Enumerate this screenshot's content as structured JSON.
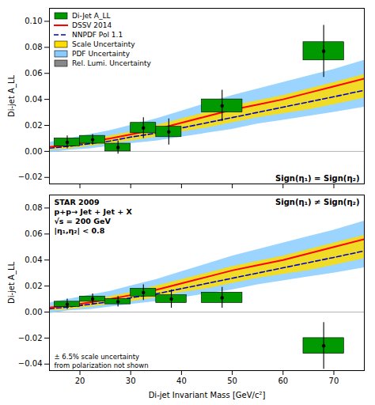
{
  "chart_data": [
    {
      "type": "errorbar",
      "ylabel": "Di-jet A_LL",
      "annotations": [
        "Sign(η₁) = Sign(η₂)"
      ],
      "xlim": [
        14,
        76
      ],
      "xticks": [
        20,
        30,
        40,
        50,
        60,
        70
      ],
      "ylim": [
        -0.025,
        0.11
      ],
      "yticks": [
        {
          "value": -0.02,
          "label": "−0.02"
        },
        {
          "value": 0,
          "label": "0.00"
        },
        0.02,
        0.04,
        0.06,
        0.08,
        {
          "value": 0.1,
          "label": "0.10"
        }
      ],
      "tick_labels": "y",
      "legend": "upper left",
      "series": [
        {
          "name": "Di-Jet A_LL",
          "type": "errorbar",
          "color": "#009900",
          "marker": "circle",
          "x": [
            17.5,
            22.5,
            27.5,
            32.5,
            37.5,
            48.0,
            68.0
          ],
          "values": [
            0.007,
            0.009,
            0.003,
            0.018,
            0.015,
            0.035,
            0.077
          ],
          "stat_err": [
            0.005,
            0.004,
            0.005,
            0.008,
            0.01,
            0.012,
            0.02
          ],
          "syst_err": [
            0.003,
            0.003,
            0.003,
            0.004,
            0.004,
            0.005,
            0.007
          ],
          "x_err": [
            2.5,
            2.5,
            2.5,
            2.5,
            2.5,
            4.0,
            4.0
          ]
        },
        {
          "name": "DSSV 2014",
          "type": "line",
          "color": "#ff0000",
          "line_style": "solid",
          "x": [
            14,
            18,
            22,
            26,
            30,
            35,
            40,
            45,
            50,
            55,
            60,
            65,
            70,
            76
          ],
          "values": [
            0.0035,
            0.005,
            0.0075,
            0.01,
            0.013,
            0.017,
            0.022,
            0.027,
            0.032,
            0.036,
            0.04,
            0.045,
            0.05,
            0.056
          ]
        },
        {
          "name": "NNPDF Pol 1.1",
          "type": "line",
          "color": "#0000cc",
          "line_style": "dashed",
          "x": [
            14,
            18,
            22,
            26,
            30,
            35,
            40,
            45,
            50,
            55,
            60,
            65,
            70,
            76
          ],
          "values": [
            0.0025,
            0.004,
            0.006,
            0.008,
            0.011,
            0.014,
            0.018,
            0.022,
            0.026,
            0.03,
            0.034,
            0.038,
            0.042,
            0.047
          ]
        },
        {
          "name": "Scale Uncertainty",
          "type": "area",
          "color": "#ffdd00",
          "x": [
            14,
            18,
            22,
            26,
            30,
            35,
            40,
            45,
            50,
            55,
            60,
            65,
            70,
            76
          ],
          "lower": [
            0.001,
            0.002,
            0.004,
            0.006,
            0.008,
            0.011,
            0.015,
            0.018,
            0.022,
            0.026,
            0.029,
            0.032,
            0.036,
            0.041
          ],
          "upper": [
            0.004,
            0.006,
            0.009,
            0.012,
            0.015,
            0.02,
            0.025,
            0.03,
            0.035,
            0.039,
            0.043,
            0.048,
            0.053,
            0.059
          ]
        },
        {
          "name": "PDF Uncertainty",
          "type": "area",
          "color": "#88ccff",
          "x": [
            14,
            18,
            22,
            26,
            30,
            35,
            40,
            45,
            50,
            55,
            60,
            65,
            70,
            76
          ],
          "lower": [
            -0.001,
            0.001,
            0.002,
            0.004,
            0.006,
            0.008,
            0.011,
            0.014,
            0.017,
            0.021,
            0.024,
            0.027,
            0.03,
            0.034
          ],
          "upper": [
            0.007,
            0.01,
            0.013,
            0.016,
            0.02,
            0.025,
            0.031,
            0.037,
            0.043,
            0.048,
            0.053,
            0.058,
            0.063,
            0.07
          ]
        },
        {
          "name": "Rel. Lumi. Uncertainty",
          "type": "area",
          "color": "#888888"
        }
      ]
    },
    {
      "type": "errorbar",
      "xlabel": "Di-jet Invariant Mass [GeV/c²]",
      "ylabel": "Di-jet A_LL",
      "annotations": [
        "Sign(η₁) ≠ Sign(η₂)",
        "STAR 2009\np+p→ Jet + Jet + X\n√s = 200 GeV\n|η₁,η₂| < 0.8",
        "± 6.5% scale uncertainty\nfrom polarization not shown"
      ],
      "xlim": [
        14,
        76
      ],
      "xticks": [
        20,
        30,
        40,
        50,
        60,
        70
      ],
      "ylim": [
        -0.045,
        0.09
      ],
      "yticks": [
        {
          "value": -0.04,
          "label": "−0.04"
        },
        {
          "value": -0.02,
          "label": "−0.02"
        },
        {
          "value": 0,
          "label": "0.00"
        },
        0.02,
        0.04,
        0.06,
        0.08
      ],
      "legend": false,
      "series": [
        {
          "name": "Di-Jet A_LL",
          "type": "errorbar",
          "color": "#009900",
          "marker": "circle",
          "x": [
            17.5,
            22.5,
            27.5,
            32.5,
            38.0,
            48.0,
            68.0
          ],
          "values": [
            0.006,
            0.01,
            0.008,
            0.015,
            0.01,
            0.011,
            -0.026
          ],
          "stat_err": [
            0.004,
            0.004,
            0.004,
            0.006,
            0.007,
            0.008,
            0.018
          ],
          "syst_err": [
            0.002,
            0.002,
            0.002,
            0.003,
            0.003,
            0.004,
            0.006
          ],
          "x_err": [
            2.5,
            2.5,
            2.5,
            2.5,
            3.0,
            4.0,
            4.0
          ]
        },
        {
          "name": "DSSV 2014",
          "type": "line",
          "color": "#ff0000",
          "line_style": "solid",
          "x": [
            14,
            18,
            22,
            26,
            30,
            35,
            40,
            45,
            50,
            55,
            60,
            65,
            70,
            76
          ],
          "values": [
            0.0035,
            0.005,
            0.0075,
            0.01,
            0.013,
            0.017,
            0.022,
            0.027,
            0.032,
            0.036,
            0.04,
            0.045,
            0.05,
            0.056
          ]
        },
        {
          "name": "NNPDF Pol 1.1",
          "type": "line",
          "color": "#0000cc",
          "line_style": "dashed",
          "x": [
            14,
            18,
            22,
            26,
            30,
            35,
            40,
            45,
            50,
            55,
            60,
            65,
            70,
            76
          ],
          "values": [
            0.0025,
            0.004,
            0.006,
            0.008,
            0.011,
            0.014,
            0.018,
            0.022,
            0.026,
            0.03,
            0.034,
            0.038,
            0.042,
            0.047
          ]
        },
        {
          "name": "Scale Uncertainty",
          "type": "area",
          "color": "#ffdd00",
          "x": [
            14,
            18,
            22,
            26,
            30,
            35,
            40,
            45,
            50,
            55,
            60,
            65,
            70,
            76
          ],
          "lower": [
            0.001,
            0.002,
            0.004,
            0.006,
            0.008,
            0.011,
            0.015,
            0.018,
            0.022,
            0.026,
            0.029,
            0.032,
            0.036,
            0.041
          ],
          "upper": [
            0.004,
            0.006,
            0.009,
            0.012,
            0.015,
            0.02,
            0.025,
            0.03,
            0.035,
            0.039,
            0.043,
            0.048,
            0.053,
            0.059
          ]
        },
        {
          "name": "PDF Uncertainty",
          "type": "area",
          "color": "#88ccff",
          "x": [
            14,
            18,
            22,
            26,
            30,
            35,
            40,
            45,
            50,
            55,
            60,
            65,
            70,
            76
          ],
          "lower": [
            -0.001,
            0.001,
            0.002,
            0.004,
            0.006,
            0.008,
            0.011,
            0.014,
            0.017,
            0.021,
            0.024,
            0.027,
            0.03,
            0.034
          ],
          "upper": [
            0.007,
            0.01,
            0.013,
            0.016,
            0.02,
            0.025,
            0.031,
            0.037,
            0.043,
            0.048,
            0.053,
            0.058,
            0.063,
            0.07
          ]
        }
      ]
    }
  ]
}
